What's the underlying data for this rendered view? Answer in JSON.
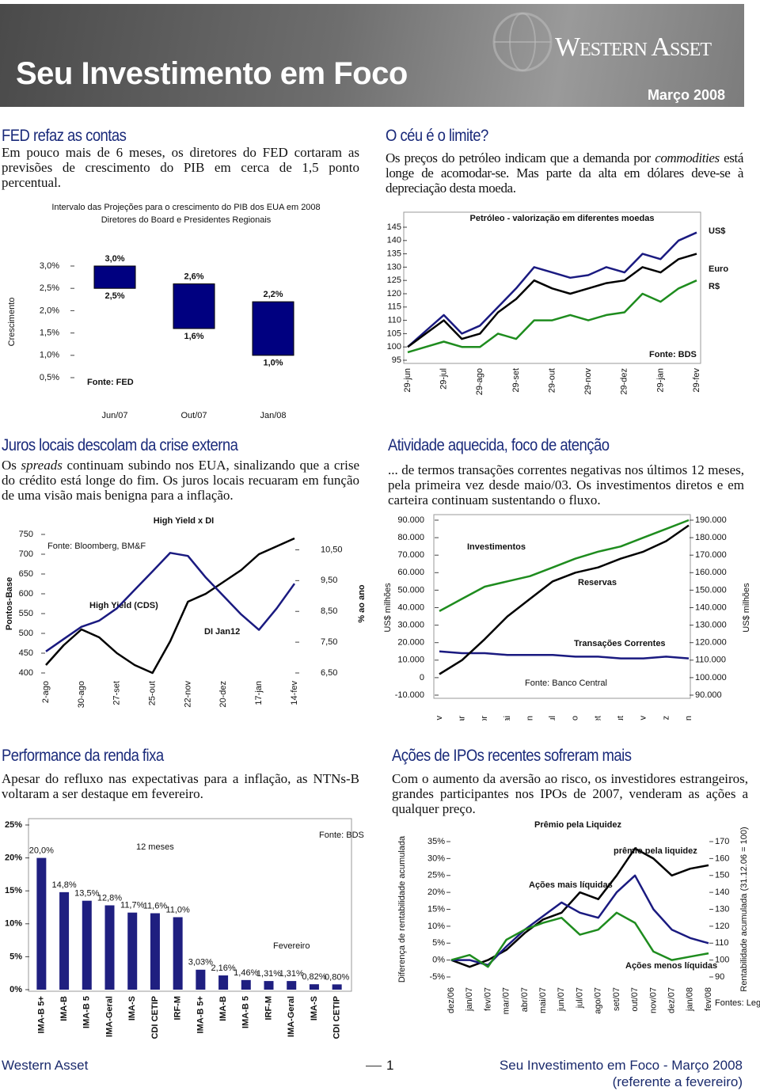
{
  "header": {
    "title": "Seu Investimento em Foco",
    "brand": "Western Asset",
    "date": "Março 2008"
  },
  "sections": [
    {
      "title": "FED refaz as contas",
      "body": [
        "Em pouco mais de 6 meses, os diretores do FED cortaram as previsões de crescimento do PIB em cerca de 1,5 ponto percentual."
      ]
    },
    {
      "title": "O céu é o limite?",
      "body": [
        "Os preços do petróleo indicam que a demanda por ",
        "commodities",
        " está longe de acomodar-se. Mas parte da alta em dólares deve-se à depreciação desta moeda."
      ]
    },
    {
      "title": "Juros locais descolam da crise externa",
      "body": [
        "Os ",
        "spreads",
        " continuam subindo nos EUA, sinalizando que a crise do crédito está longe do fim. Os juros locais recuaram em função de uma visão mais benigna para a inflação."
      ]
    },
    {
      "title": "Atividade aquecida, foco de atenção",
      "body": [
        "... de termos transações correntes negativas nos últimos 12 meses, pela primeira vez desde maio/03. Os investimentos diretos e em carteira continuam sustentando o fluxo."
      ]
    },
    {
      "title": "Performance da renda fixa",
      "body": [
        "Apesar do refluxo nas expectativas para a inflação, as NTNs-B voltaram a ser destaque em fevereiro."
      ]
    },
    {
      "title": "Ações de IPOs recentes sofreram mais",
      "body": [
        "Com o aumento da aversão ao risco, os investidores estrangeiros, grandes participantes nos IPOs de 2007, venderam as ações a qualquer preço."
      ]
    }
  ],
  "footer": {
    "left": "Western Asset",
    "page": "1",
    "right": "Seu Investimento em Foco - Março 2008",
    "note": "(referente a fevereiro)"
  },
  "chart_data": [
    {
      "type": "range_bar",
      "title": "Intervalo das Projeções para o crescimento do PIB dos EUA em 2008",
      "subtitle": "Diretores do Board e Presidentes Regionais",
      "categories": [
        "Jun/07",
        "Out/07",
        "Jan/08"
      ],
      "values": [
        [
          2.5,
          3.0
        ],
        [
          1.6,
          2.6
        ],
        [
          1.0,
          2.2
        ]
      ],
      "value_labels": [
        [
          "2,5%",
          "3,0%"
        ],
        [
          "1,6%",
          "2,6%"
        ],
        [
          "1,0%",
          "2,2%"
        ]
      ],
      "color": "#000080",
      "ylim": [
        0.5,
        3.0
      ],
      "yticks": [
        {
          "value": 0.5,
          "label": "0,5%"
        },
        {
          "value": 1.0,
          "label": "1,0%"
        },
        {
          "value": 1.5,
          "label": "1,5%"
        },
        {
          "value": 2.0,
          "label": "2,0%"
        },
        {
          "value": 2.5,
          "label": "2,5%"
        },
        {
          "value": 3.0,
          "label": "3,0%"
        }
      ],
      "ylabel": "Crescimento",
      "annotations": [
        "Fonte: FED"
      ]
    },
    {
      "type": "line",
      "title": "Petróleo - valorização em diferentes moedas",
      "categories": [
        "29-jun",
        null,
        "29-jul",
        null,
        "29-ago",
        null,
        "29-set",
        null,
        "29-out",
        null,
        "29-nov",
        null,
        "29-dez",
        null,
        "29-jan",
        null,
        "29-fev"
      ],
      "series": [
        {
          "name": "US$",
          "color": "#1a1a80",
          "values": [
            100,
            106,
            112,
            105,
            108,
            115,
            122,
            130,
            128,
            126,
            127,
            130,
            128,
            135,
            133,
            140,
            143
          ]
        },
        {
          "name": "Euro",
          "color": "#000000",
          "values": [
            100,
            105,
            110,
            103,
            105,
            113,
            118,
            125,
            122,
            120,
            122,
            124,
            125,
            130,
            128,
            133,
            135
          ]
        },
        {
          "name": "R$",
          "color": "#1e8c1e",
          "values": [
            98,
            100,
            102,
            100,
            100,
            105,
            103,
            110,
            110,
            112,
            110,
            112,
            113,
            120,
            117,
            122,
            125
          ]
        }
      ],
      "ylim": [
        95,
        145
      ],
      "yticks": [
        95,
        100,
        105,
        110,
        115,
        120,
        125,
        130,
        135,
        140,
        145
      ],
      "annotations": [
        "Fonte: BDS"
      ]
    },
    {
      "type": "line",
      "title": "High Yield x DI",
      "categories": [
        "2-ago",
        null,
        "30-ago",
        null,
        "27-set",
        null,
        "25-out",
        null,
        "22-nov",
        null,
        "20-dez",
        null,
        "17-jan",
        null,
        "14-fev"
      ],
      "series": [
        {
          "name": "High Yield (CDS)",
          "color": "#000000",
          "values": [
            420,
            470,
            510,
            490,
            450,
            420,
            400,
            480,
            580,
            600,
            630,
            660,
            700,
            720,
            740
          ]
        },
        {
          "name": "DI Jan12",
          "color": "#1a1a80",
          "axis": "y2",
          "values": [
            7.2,
            7.6,
            8.0,
            8.2,
            8.6,
            9.2,
            9.8,
            10.4,
            10.3,
            9.6,
            9.0,
            8.4,
            7.9,
            8.6,
            9.4
          ]
        }
      ],
      "ylim": [
        400,
        750
      ],
      "yticks": [
        400,
        450,
        500,
        550,
        600,
        650,
        700,
        750
      ],
      "y2lim": [
        6.5,
        11
      ],
      "y2ticks": [
        {
          "value": 6.5,
          "label": "6,50"
        },
        {
          "value": 7.5,
          "label": "7,50"
        },
        {
          "value": 8.5,
          "label": "8,50"
        },
        {
          "value": 9.5,
          "label": "9,50"
        },
        {
          "value": 10.5,
          "label": "10,50"
        }
      ],
      "ylabel": "Pontos-Base",
      "y2label": "% ao ano",
      "annotations": [
        "Fonte: Bloomberg, BM&F"
      ]
    },
    {
      "type": "line",
      "categories": [
        "Fev",
        "Mar",
        "Abr",
        "Mai",
        "Jun",
        "Jul",
        "Ago",
        "Set",
        "Out",
        "Nov",
        "Dez",
        "Jan"
      ],
      "series": [
        {
          "name": "Investimentos",
          "color": "#1e8c1e",
          "values": [
            38000,
            45000,
            52000,
            55000,
            58000,
            63000,
            68000,
            72000,
            75000,
            80000,
            85000,
            90000
          ]
        },
        {
          "name": "Transações Correntes",
          "color": "#1a1a80",
          "values": [
            15000,
            14000,
            14000,
            13000,
            13000,
            13000,
            12000,
            12000,
            11000,
            11000,
            12000,
            11000
          ]
        },
        {
          "name": "Reservas",
          "color": "#000000",
          "axis": "y2",
          "values": [
            102000,
            110000,
            122000,
            135000,
            145000,
            155000,
            160000,
            163000,
            168000,
            172000,
            178000,
            187000
          ]
        }
      ],
      "ylim": [
        -10000,
        90000
      ],
      "yticks": [
        {
          "value": -10000,
          "label": "-10.000"
        },
        0,
        {
          "value": 10000,
          "label": "10.000"
        },
        {
          "value": 20000,
          "label": "20.000"
        },
        {
          "value": 30000,
          "label": "30.000"
        },
        {
          "value": 40000,
          "label": "40.000"
        },
        {
          "value": 50000,
          "label": "50.000"
        },
        {
          "value": 60000,
          "label": "60.000"
        },
        {
          "value": 70000,
          "label": "70.000"
        },
        {
          "value": 80000,
          "label": "80.000"
        },
        {
          "value": 90000,
          "label": "90.000"
        }
      ],
      "y2lim": [
        90000,
        190000
      ],
      "y2ticks": [
        {
          "value": 90000,
          "label": "90.000"
        },
        {
          "value": 100000,
          "label": "100.000"
        },
        {
          "value": 110000,
          "label": "110.000"
        },
        {
          "value": 120000,
          "label": "120.000"
        },
        {
          "value": 130000,
          "label": "130.000"
        },
        {
          "value": 140000,
          "label": "140.000"
        },
        {
          "value": 150000,
          "label": "150.000"
        },
        {
          "value": 160000,
          "label": "160.000"
        },
        {
          "value": 170000,
          "label": "170.000"
        },
        {
          "value": 180000,
          "label": "180.000"
        },
        {
          "value": 190000,
          "label": "190.000"
        }
      ],
      "ylabel": "US$ milhões",
      "y2label": "US$ milhões",
      "annotations": [
        "Fonte: Banco Central"
      ]
    },
    {
      "type": "bar",
      "categories": [
        "IMA-B 5+",
        "IMA-B",
        "IMA-B 5",
        "IMA-Geral",
        "IMA-S",
        "CDI CETIP",
        "IRF-M",
        "IMA-B 5+",
        "IMA-B",
        "IMA-B 5",
        "IRF-M",
        "IMA-Geral",
        "IMA-S",
        "CDI CETIP"
      ],
      "values": [
        20.0,
        14.8,
        13.5,
        12.8,
        11.7,
        11.6,
        11.0,
        3.03,
        2.16,
        1.46,
        1.31,
        1.31,
        0.82,
        0.8
      ],
      "value_labels": [
        "20,0%",
        "14,8%",
        "13,5%",
        "12,8%",
        "11,7%",
        "11,6%",
        "11,0%",
        "3,03%",
        "2,16%",
        "1,46%",
        "1,31%",
        "1,31%",
        "0,82%",
        "0,80%"
      ],
      "color": "#1f1f80",
      "ylim": [
        0,
        25
      ],
      "yticks": [
        {
          "value": 0,
          "label": "0%"
        },
        {
          "value": 5,
          "label": "5%"
        },
        {
          "value": 10,
          "label": "10%"
        },
        {
          "value": 15,
          "label": "15%"
        },
        {
          "value": 20,
          "label": "20%"
        },
        {
          "value": 25,
          "label": "25%"
        }
      ],
      "annotations": [
        "12 meses",
        "Fevereiro",
        "Fonte: BDS"
      ]
    },
    {
      "type": "line",
      "title": "Prêmio pela Liquidez",
      "categories": [
        "dez/06",
        "jan/07",
        "fev/07",
        "mar/07",
        "abr/07",
        "mai/07",
        "jun/07",
        "jul/07",
        "ago/07",
        "set/07",
        "out/07",
        "nov/07",
        "dez/07",
        "jan/08",
        "fev/08"
      ],
      "series": [
        {
          "name": "prêmio pela liquidez",
          "color": "#000000",
          "values": [
            0,
            -2,
            0,
            3,
            8,
            12,
            14,
            20,
            18,
            25,
            33,
            30,
            25,
            27,
            28
          ]
        },
        {
          "name": "Ações mais líquidas",
          "color": "#1a1a80",
          "axis": "y2",
          "values": [
            100,
            100,
            97,
            108,
            118,
            126,
            134,
            128,
            125,
            140,
            150,
            130,
            118,
            113,
            110
          ]
        },
        {
          "name": "Ações menos líquidas",
          "color": "#1e8c1e",
          "axis": "y2",
          "values": [
            100,
            103,
            96,
            112,
            118,
            122,
            125,
            115,
            118,
            128,
            122,
            105,
            100,
            102,
            104
          ]
        }
      ],
      "ylim": [
        -5,
        35
      ],
      "yticks": [
        {
          "value": -5,
          "label": "-5%"
        },
        {
          "value": 0,
          "label": "0%"
        },
        {
          "value": 5,
          "label": "5%"
        },
        {
          "value": 10,
          "label": "10%"
        },
        {
          "value": 15,
          "label": "15%"
        },
        {
          "value": 20,
          "label": "20%"
        },
        {
          "value": 25,
          "label": "25%"
        },
        {
          "value": 30,
          "label": "30%"
        },
        {
          "value": 35,
          "label": "35%"
        }
      ],
      "y2lim": [
        90,
        170
      ],
      "y2ticks": [
        90,
        100,
        110,
        120,
        130,
        140,
        150,
        160,
        170
      ],
      "ylabel": "Diferença de rentabilidade acumulada",
      "y2label": "Rentabilidade acumulada (31.12.06 = 100)",
      "annotations": [
        "Fontes: Legg Mason,"
      ]
    }
  ]
}
